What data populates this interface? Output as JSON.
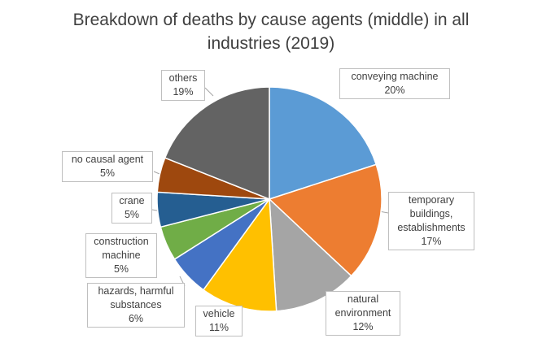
{
  "chart_data": {
    "type": "pie",
    "title_lines": [
      "Breakdown of deaths by cause agents (middle) in all",
      "industries (2019)"
    ],
    "slices": [
      {
        "label_lines": [
          "conveying machine"
        ],
        "value": 20,
        "value_text": "20%",
        "color": "#5b9bd5"
      },
      {
        "label_lines": [
          "temporary",
          "buildings,",
          "establishments"
        ],
        "value": 17,
        "value_text": "17%",
        "color": "#ed7d31"
      },
      {
        "label_lines": [
          "natural",
          "environment"
        ],
        "value": 12,
        "value_text": "12%",
        "color": "#a5a5a5"
      },
      {
        "label_lines": [
          "vehicle"
        ],
        "value": 11,
        "value_text": "11%",
        "color": "#ffc000"
      },
      {
        "label_lines": [
          "hazards, harmful",
          "substances"
        ],
        "value": 6,
        "value_text": "6%",
        "color": "#4472c4"
      },
      {
        "label_lines": [
          "construction",
          "machine"
        ],
        "value": 5,
        "value_text": "5%",
        "color": "#70ad47"
      },
      {
        "label_lines": [
          "crane"
        ],
        "value": 5,
        "value_text": "5%",
        "color": "#255e91"
      },
      {
        "label_lines": [
          "no causal agent"
        ],
        "value": 5,
        "value_text": "5%",
        "color": "#9e480e"
      },
      {
        "label_lines": [
          "others"
        ],
        "value": 19,
        "value_text": "19%",
        "color": "#636363"
      }
    ],
    "start_angle": "12 o'clock",
    "direction": "clockwise",
    "legend": "none"
  }
}
